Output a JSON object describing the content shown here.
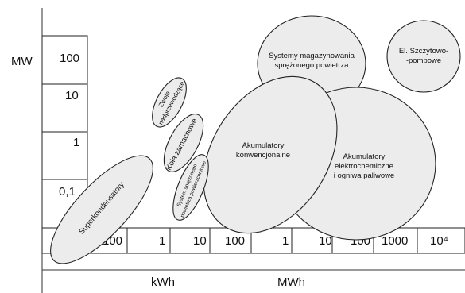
{
  "axes": {
    "y_unit": "MW",
    "y_ticks": [
      "100",
      "10",
      "1",
      "0,1"
    ],
    "x_ticks": [
      "100",
      "1",
      "10",
      "100",
      "1",
      "10",
      "100",
      "1000",
      "10⁴"
    ],
    "x_units": [
      "kWh",
      "MWh"
    ]
  },
  "technologies": {
    "superkondensatory": "Superkondensatory",
    "zwoje_line1": "Zwoje",
    "zwoje_line2": "nadprzewodzące",
    "kola": "Koła zamachowe",
    "system_small_line1": "System sprężonego",
    "system_small_line2": "powietrza powierzchniowe",
    "akum_konw_line1": "Akumulatory",
    "akum_konw_line2": "konwencjonalne",
    "akum_el_line1": "Akumulatory",
    "akum_el_line2": "elektrochemiczne",
    "akum_el_line3": "i ogniwa paliwowe",
    "systemy_line1": "Systemy magazynowania",
    "systemy_line2": "sprężonego powietrza",
    "szczyt_line1": "El. Szczytowo-",
    "szczyt_line2": "-pompowe"
  }
}
